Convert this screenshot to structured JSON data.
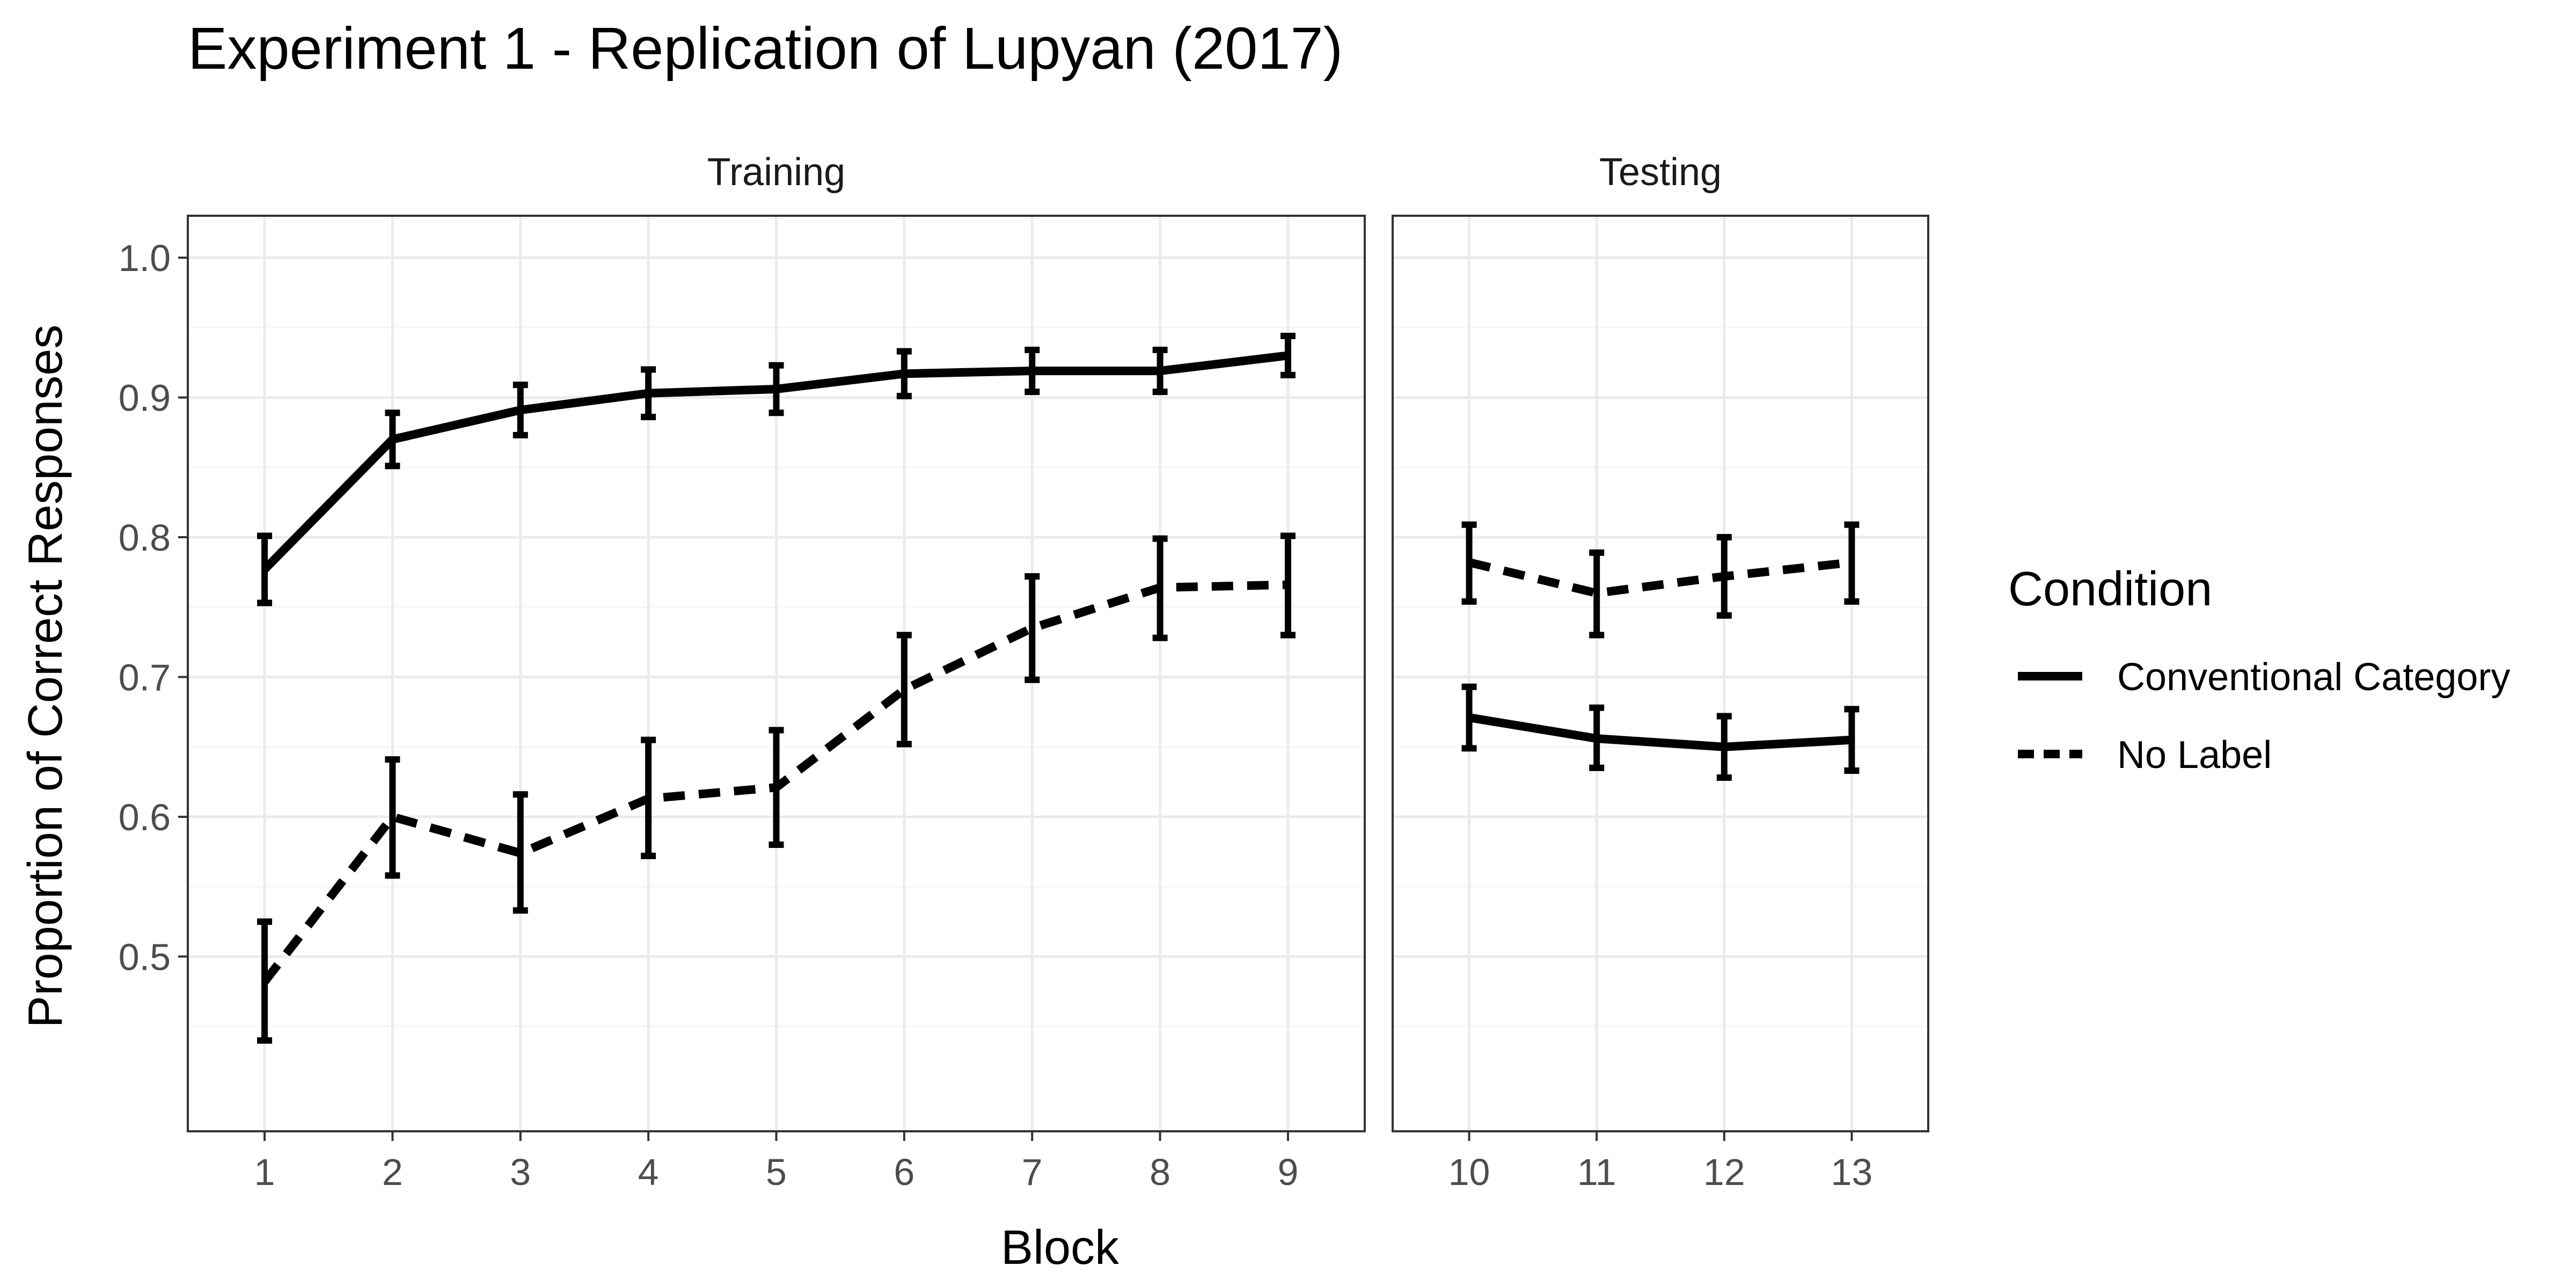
{
  "chart_data": {
    "type": "line",
    "title": "Experiment 1 - Replication of Lupyan (2017)",
    "xlabel": "Block",
    "ylabel": "Proportion of Correct Responses",
    "ylim": [
      0.375,
      1.03
    ],
    "yticks": [
      0.5,
      0.6,
      0.7,
      0.8,
      0.9,
      1.0
    ],
    "ytick_labels": [
      "0.5",
      "0.6",
      "0.7",
      "0.8",
      "0.9",
      "1.0"
    ],
    "grid": true,
    "legend": {
      "title": "Condition",
      "position": "right"
    },
    "panels": [
      {
        "name": "Training",
        "x": [
          1,
          2,
          3,
          4,
          5,
          6,
          7,
          8,
          9
        ],
        "xlim": [
          0.4,
          9.6
        ],
        "series": [
          {
            "name": "Conventional Category",
            "linestyle": "solid",
            "values": [
              0.777,
              0.87,
              0.891,
              0.903,
              0.906,
              0.917,
              0.919,
              0.919,
              0.93
            ],
            "lower": [
              0.753,
              0.851,
              0.873,
              0.886,
              0.889,
              0.901,
              0.904,
              0.904,
              0.916
            ],
            "upper": [
              0.801,
              0.889,
              0.909,
              0.92,
              0.923,
              0.933,
              0.934,
              0.934,
              0.944
            ]
          },
          {
            "name": "No Label",
            "linestyle": "dashed",
            "values": [
              0.482,
              0.6,
              0.574,
              0.613,
              0.621,
              0.691,
              0.735,
              0.764,
              0.766
            ],
            "lower": [
              0.44,
              0.558,
              0.533,
              0.572,
              0.58,
              0.652,
              0.698,
              0.728,
              0.73
            ],
            "upper": [
              0.525,
              0.641,
              0.616,
              0.655,
              0.662,
              0.73,
              0.772,
              0.799,
              0.801
            ]
          }
        ]
      },
      {
        "name": "Testing",
        "x": [
          10,
          11,
          12,
          13
        ],
        "xlim": [
          9.4,
          13.6
        ],
        "series": [
          {
            "name": "Conventional Category",
            "linestyle": "solid",
            "values": [
              0.671,
              0.656,
              0.65,
              0.655
            ],
            "lower": [
              0.649,
              0.635,
              0.628,
              0.633
            ],
            "upper": [
              0.693,
              0.678,
              0.672,
              0.677
            ]
          },
          {
            "name": "No Label",
            "linestyle": "dashed",
            "values": [
              0.782,
              0.76,
              0.772,
              0.782
            ],
            "lower": [
              0.754,
              0.73,
              0.744,
              0.754
            ],
            "upper": [
              0.809,
              0.789,
              0.8,
              0.809
            ]
          }
        ]
      }
    ]
  },
  "colors": {
    "line": "#000000",
    "grid_major": "#ebebeb",
    "grid_minor": "#f5f5f5",
    "panel_border": "#333333",
    "strip_fill": "#ffffff",
    "tick_text": "#4d4d4d"
  }
}
